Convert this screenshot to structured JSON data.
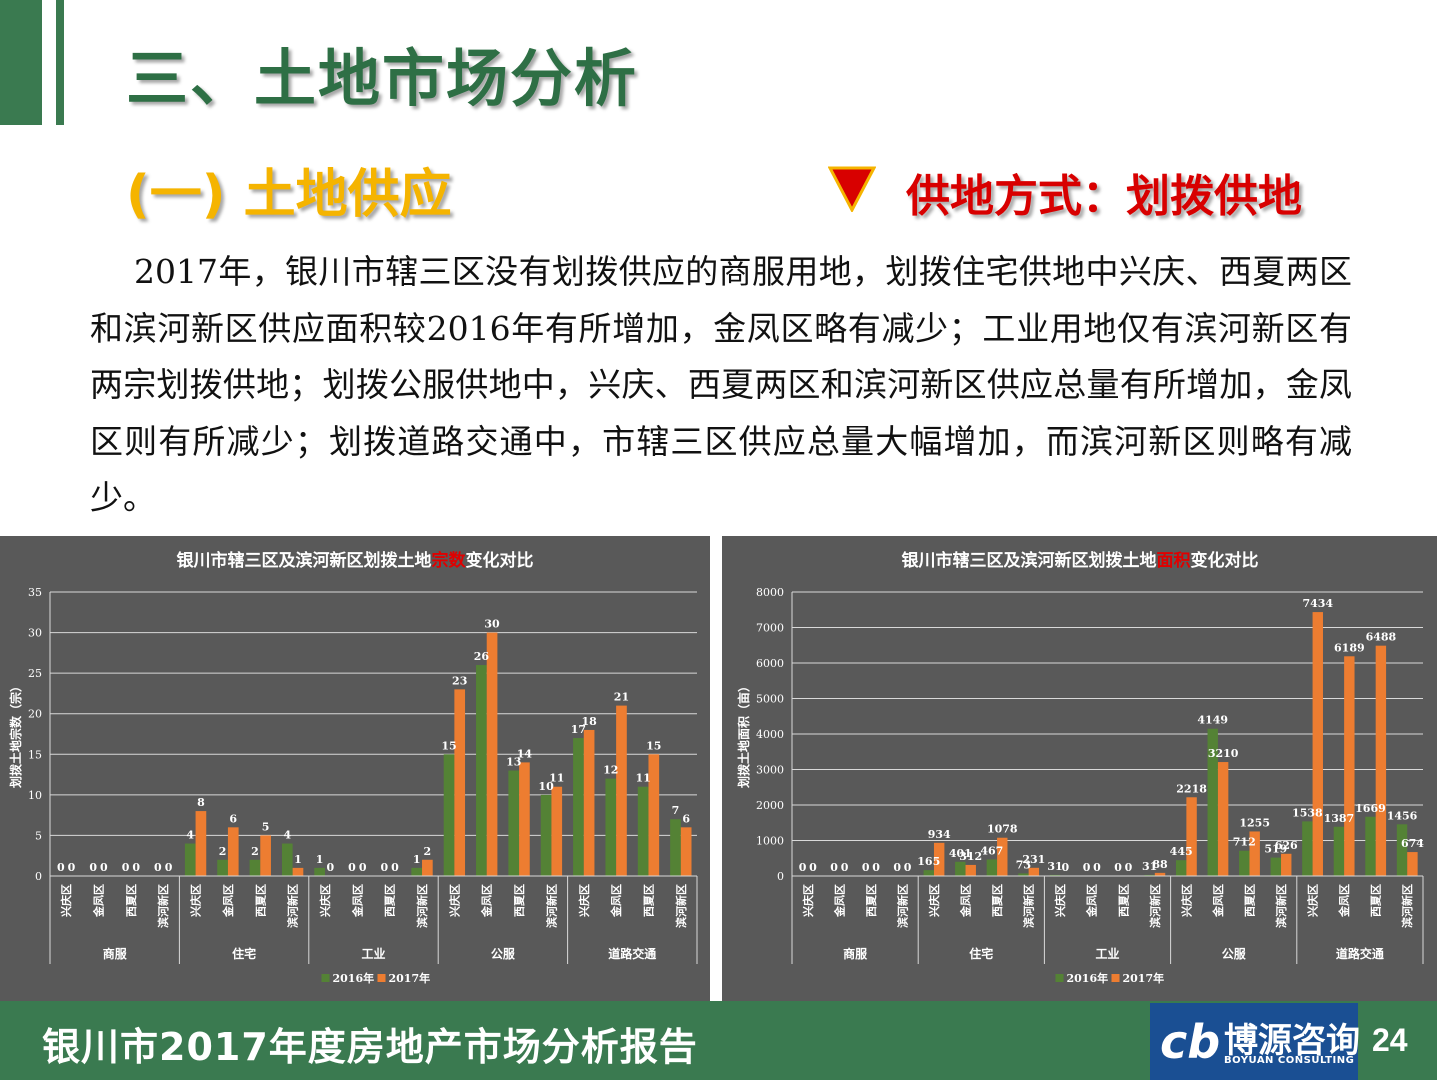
{
  "header": {
    "title": "三、土地市场分析",
    "subtitle": "(一) 土地供应",
    "supply_mode": "供地方式：划拨供地"
  },
  "paragraph": "2017年，银川市辖三区没有划拨供应的商服用地，划拨住宅供地中兴庆、西夏两区和滨河新区供应面积较2016年有所增加，金凤区略有减少；工业用地仅有滨河新区有两宗划拨供地；划拨公服供地中，兴庆、西夏两区和滨河新区供应总量有所增加，金凤区则有所减少；划拨道路交通中，市辖三区供应总量大幅增加，而滨河新区则略有减少。",
  "footer": {
    "report_title": "银川市2017年度房地产市场分析报告",
    "logo_cn": "博源咨询",
    "logo_en": "BOYUAN CONSULTING",
    "page_number": "24"
  },
  "colors": {
    "green_2016": "#548235",
    "orange_2017": "#ed7d31",
    "chart_bg": "#595959",
    "brand_green": "#3a7a50",
    "title_yellow": "#f5b400",
    "highlight_red": "#d80000"
  },
  "chart_data": [
    {
      "type": "bar",
      "title_parts": [
        "银川市辖三区及滨河新区划拨土地",
        "宗数",
        "变化对比"
      ],
      "ylabel": "划拨土地宗数（宗）",
      "ylim": [
        0,
        35
      ],
      "yticks": [
        0,
        5,
        10,
        15,
        20,
        25,
        30,
        35
      ],
      "groups": [
        "商服",
        "住宅",
        "工业",
        "公服",
        "道路交通"
      ],
      "districts": [
        "兴庆区",
        "金凤区",
        "西夏区",
        "滨河新区"
      ],
      "series": [
        {
          "name": "2016年",
          "values": [
            0,
            0,
            0,
            0,
            4,
            2,
            2,
            4,
            1,
            0,
            0,
            1,
            15,
            26,
            13,
            10,
            17,
            12,
            11,
            7
          ]
        },
        {
          "name": "2017年",
          "values": [
            0,
            0,
            0,
            0,
            8,
            6,
            5,
            1,
            0,
            0,
            0,
            2,
            23,
            30,
            14,
            11,
            18,
            21,
            15,
            6
          ]
        }
      ],
      "legend_position": "bottom",
      "grid": true
    },
    {
      "type": "bar",
      "title_parts": [
        "银川市辖三区及滨河新区划拨土地",
        "面积",
        "变化对比"
      ],
      "ylabel": "划拨土地面积（亩）",
      "ylim": [
        0,
        8000
      ],
      "yticks": [
        0,
        1000,
        2000,
        3000,
        4000,
        5000,
        6000,
        7000,
        8000
      ],
      "groups": [
        "商服",
        "住宅",
        "工业",
        "公服",
        "道路交通"
      ],
      "districts": [
        "兴庆区",
        "金凤区",
        "西夏区",
        "滨河新区"
      ],
      "series": [
        {
          "name": "2016年",
          "values": [
            0,
            0,
            0,
            0,
            165,
            401,
            467,
            73,
            31,
            0,
            0,
            31,
            445,
            4149,
            712,
            519,
            1538,
            1387,
            1669,
            1456
          ]
        },
        {
          "name": "2017年",
          "values": [
            0,
            0,
            0,
            0,
            934,
            312,
            1078,
            231,
            0,
            0,
            0,
            88,
            2218,
            3210,
            1255,
            626,
            7434,
            6189,
            6488,
            674
          ]
        }
      ],
      "legend_position": "bottom",
      "grid": true
    }
  ]
}
